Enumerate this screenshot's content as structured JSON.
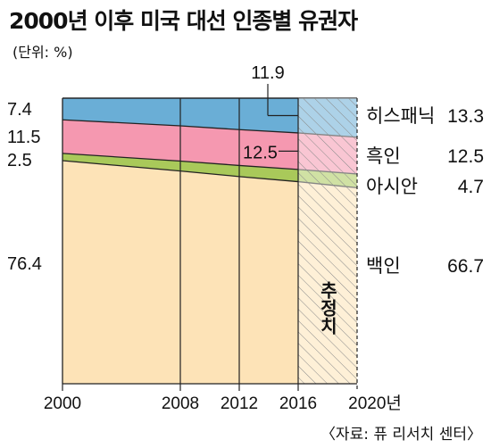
{
  "title": "2000년 이후 미국 대선 인종별 유권자",
  "unit": "(단위: %)",
  "source": "〈자료: 퓨 리서치 센터〉",
  "estimate_label": "추정치",
  "colors": {
    "hispanic": "#6aaed6",
    "black": "#f598b0",
    "asian": "#a9c95a",
    "white": "#fde3b7",
    "estimate_hatch": "#8a8a8a"
  },
  "chart_data": {
    "type": "area",
    "stacked": true,
    "x": [
      2000,
      2008,
      2012,
      2016,
      2020
    ],
    "x_ticks": [
      "2000",
      "2008",
      "2012",
      "2016",
      "2020년"
    ],
    "estimate_from": 2016,
    "series": [
      {
        "key": "white",
        "name": "백인",
        "values": [
          76.4,
          73.0,
          71.1,
          69.2,
          66.7
        ]
      },
      {
        "key": "asian",
        "name": "아시안",
        "values": [
          2.5,
          3.4,
          3.8,
          4.2,
          4.7
        ]
      },
      {
        "key": "black",
        "name": "흑인",
        "values": [
          11.5,
          12.1,
          12.3,
          12.5,
          12.5
        ]
      },
      {
        "key": "hispanic",
        "name": "히스패닉",
        "values": [
          7.4,
          9.5,
          10.8,
          11.9,
          13.3
        ]
      }
    ],
    "start_labels": [
      "7.4",
      "11.5",
      "2.5",
      "76.4"
    ],
    "end_labels": [
      "13.3",
      "12.5",
      "4.7",
      "66.7"
    ],
    "callouts": [
      {
        "series": "hispanic",
        "x": 2016,
        "label": "11.9"
      },
      {
        "series": "black",
        "x": 2016,
        "label": "12.5"
      }
    ]
  }
}
